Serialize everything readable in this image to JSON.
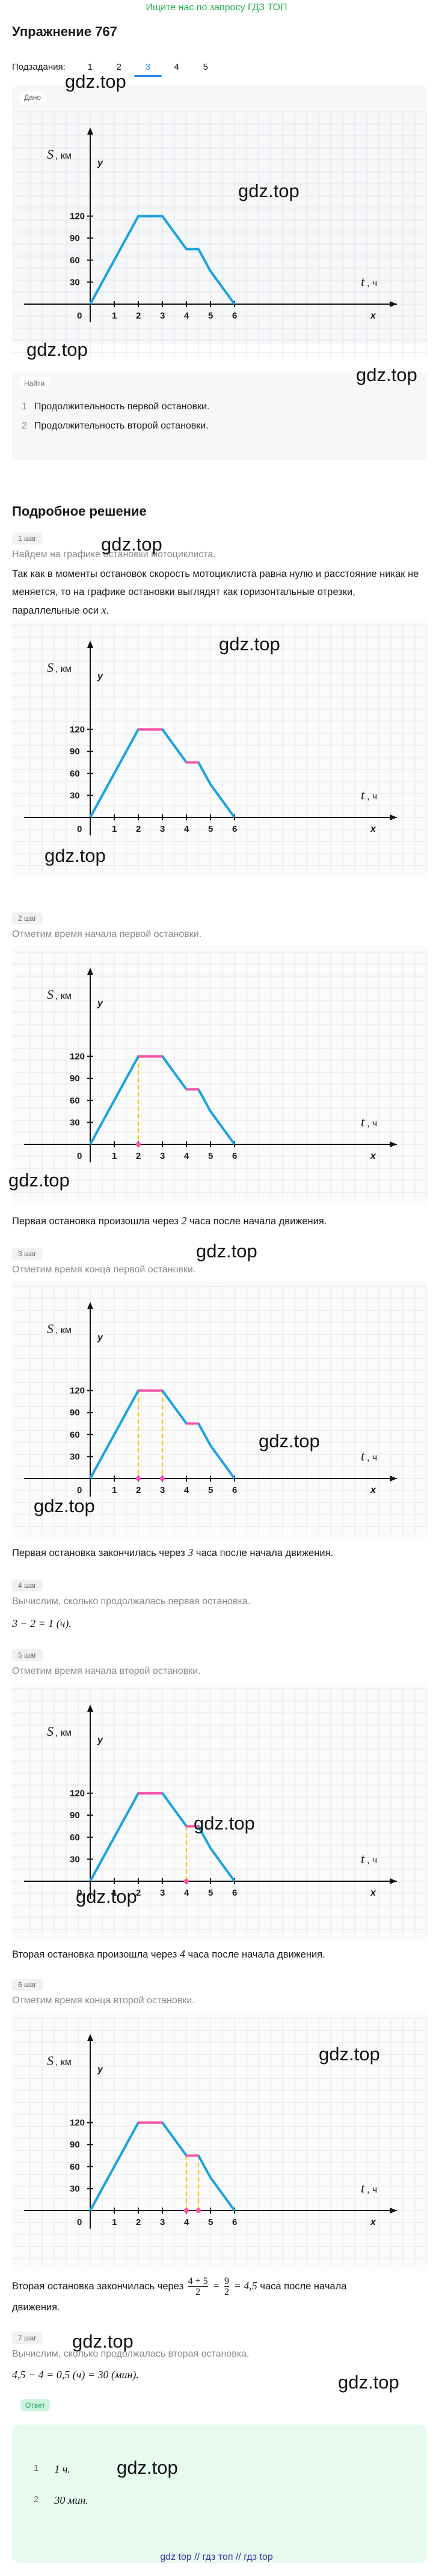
{
  "top_link": "Ищите нас по запросу ГДЗ ТОП",
  "exercise_title": "Упражнение 767",
  "subtasks": {
    "label": "Подзадания:",
    "items": [
      "1",
      "2",
      "3",
      "4",
      "5"
    ],
    "active": "3"
  },
  "given_tag": "Дано",
  "find_tag": "Найти",
  "find_items": [
    {
      "num": "1",
      "text": "Продолжительность первой остановки."
    },
    {
      "num": "2",
      "text": "Продолжительность второй остановки."
    }
  ],
  "solution_title": "Подробное решение",
  "graph_labels": {
    "S": "S",
    "km": ", км",
    "y": "y",
    "t": "t",
    "h": ", ч",
    "x": "x",
    "origin": "0"
  },
  "chart_data": {
    "type": "line",
    "title": "",
    "x": [
      0,
      2,
      3,
      4,
      4.5,
      5,
      6
    ],
    "y": [
      0,
      120,
      120,
      75,
      75,
      45,
      0
    ],
    "xticks": [
      1,
      2,
      3,
      4,
      5,
      6
    ],
    "yticks": [
      30,
      60,
      90,
      120
    ],
    "xlabel": "t, ч",
    "ylabel": "S, км",
    "xlim": [
      0,
      6
    ],
    "ylim": [
      0,
      120
    ],
    "line_color": "#1aa3e0",
    "stop_color": "#ff4fa3",
    "dash_color": "#ffc61a",
    "grid": true
  },
  "steps": [
    {
      "badge": "1 шаг",
      "note": "Найдем на графике остановки мотоциклиста.",
      "text": "Так как в моменты остановок скорость мотоциклиста равна нулю и расстояние никак не меняется, то на графике остановки выглядят как горизонтальные отрезки, параллельные оси",
      "var": "x",
      "end": "."
    },
    {
      "badge": "2 шаг",
      "note": "Отметим время начала первой остановки.",
      "text_a": "Первая остановка произошла через",
      "val": "2",
      "text_b": "часа после начала движения."
    },
    {
      "badge": "3 шаг",
      "note": "Отметим время конца первой остановки.",
      "text_a": "Первая остановка закончилась через",
      "val": "3",
      "text_b": "часа после начала движения."
    },
    {
      "badge": "4 шаг",
      "note": "Вычислим, сколько продолжалась первая остановка.",
      "formula": "3 − 2 = 1 (ч)."
    },
    {
      "badge": "5 шаг",
      "note": "Отметим время начала второй остановки.",
      "text_a": "Вторая остановка произошла через",
      "val": "4",
      "text_b": "часа после начала движения."
    },
    {
      "badge": "6 шаг",
      "note": "Отметим время конца второй остановки.",
      "text_a": "Вторая остановка закончилась через",
      "frac1_num": "4 + 5",
      "frac1_den": "2",
      "eq": "=",
      "frac2_num": "9",
      "frac2_den": "2",
      "eq2": "= 4,5",
      "text_b": "часа после начала",
      "text_c": "движения."
    },
    {
      "badge": "7 шаг",
      "note": "Вычислим, сколько продолжалась вторая остановка.",
      "formula": "4,5 − 4 = 0,5 (ч) = 30 (мин)."
    }
  ],
  "answer": {
    "tag": "Ответ",
    "items": [
      {
        "num": "1",
        "text": "1 ч."
      },
      {
        "num": "2",
        "text": "30 мин."
      }
    ]
  },
  "watermark": "gdz.top",
  "footer": "gdz top  //  гдз топ  //  гдз top"
}
